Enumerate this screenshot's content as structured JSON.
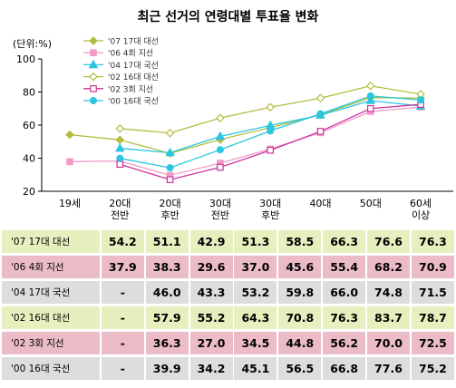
{
  "title": "최근 선거의 연령대별 투표율 변화",
  "unit_label": "(단위:%)",
  "chart_data": {
    "type": "line",
    "title": "최근 선거의 연령대별 투표율 변화",
    "ylabel": "(단위:%)",
    "ylim": [
      20,
      100
    ],
    "yticks": [
      20,
      40,
      60,
      80,
      100
    ],
    "grid": false,
    "legend_position": "top-left",
    "categories": [
      "19세",
      "20대 전반",
      "20대 후반",
      "30대 전반",
      "30대 후반",
      "40대",
      "50대",
      "60세 이상"
    ],
    "series": [
      {
        "name": "'07 17대 대선",
        "color": "#b5bd40",
        "marker": "diamond",
        "filled": true,
        "values": [
          54.2,
          51.1,
          42.9,
          51.3,
          58.5,
          66.3,
          76.6,
          76.3
        ]
      },
      {
        "name": "'06 4회 지선",
        "color": "#f29bc8",
        "marker": "square",
        "filled": true,
        "values": [
          37.9,
          38.3,
          29.6,
          37.0,
          45.6,
          55.4,
          68.2,
          70.9
        ]
      },
      {
        "name": "'04 17대 국선",
        "color": "#29c6e0",
        "marker": "triangle",
        "filled": true,
        "values": [
          null,
          46.0,
          43.3,
          53.2,
          59.8,
          66.0,
          74.8,
          71.5
        ]
      },
      {
        "name": "'02 16대 대선",
        "color": "#b5bd40",
        "marker": "diamond",
        "filled": false,
        "values": [
          null,
          57.9,
          55.2,
          64.3,
          70.8,
          76.3,
          83.7,
          78.7
        ]
      },
      {
        "name": "'02 3회 지선",
        "color": "#cc3399",
        "marker": "square",
        "filled": false,
        "values": [
          null,
          36.3,
          27.0,
          34.5,
          44.8,
          56.2,
          70.0,
          72.5
        ]
      },
      {
        "name": "'00 16대 국선",
        "color": "#29c6e0",
        "marker": "circle",
        "filled": true,
        "values": [
          null,
          39.9,
          34.2,
          45.1,
          56.5,
          66.8,
          77.6,
          75.2
        ]
      }
    ]
  },
  "table": {
    "rows": [
      {
        "label": "'07 17대 대선",
        "color": "green",
        "cells": [
          "54.2",
          "51.1",
          "42.9",
          "51.3",
          "58.5",
          "66.3",
          "76.6",
          "76.3"
        ]
      },
      {
        "label": "'06  4회 지선",
        "color": "pink",
        "cells": [
          "37.9",
          "38.3",
          "29.6",
          "37.0",
          "45.6",
          "55.4",
          "68.2",
          "70.9"
        ]
      },
      {
        "label": "'04 17대 국선",
        "color": "gray",
        "cells": [
          "-",
          "46.0",
          "43.3",
          "53.2",
          "59.8",
          "66.0",
          "74.8",
          "71.5"
        ]
      },
      {
        "label": "'02 16대 대선",
        "color": "green",
        "cells": [
          "-",
          "57.9",
          "55.2",
          "64.3",
          "70.8",
          "76.3",
          "83.7",
          "78.7"
        ]
      },
      {
        "label": "'02  3회 지선",
        "color": "pink",
        "cells": [
          "-",
          "36.3",
          "27.0",
          "34.5",
          "44.8",
          "56.2",
          "70.0",
          "72.5"
        ]
      },
      {
        "label": "'00 16대 국선",
        "color": "gray",
        "cells": [
          "-",
          "39.9",
          "34.2",
          "45.1",
          "56.5",
          "66.8",
          "77.6",
          "75.2"
        ]
      }
    ]
  }
}
